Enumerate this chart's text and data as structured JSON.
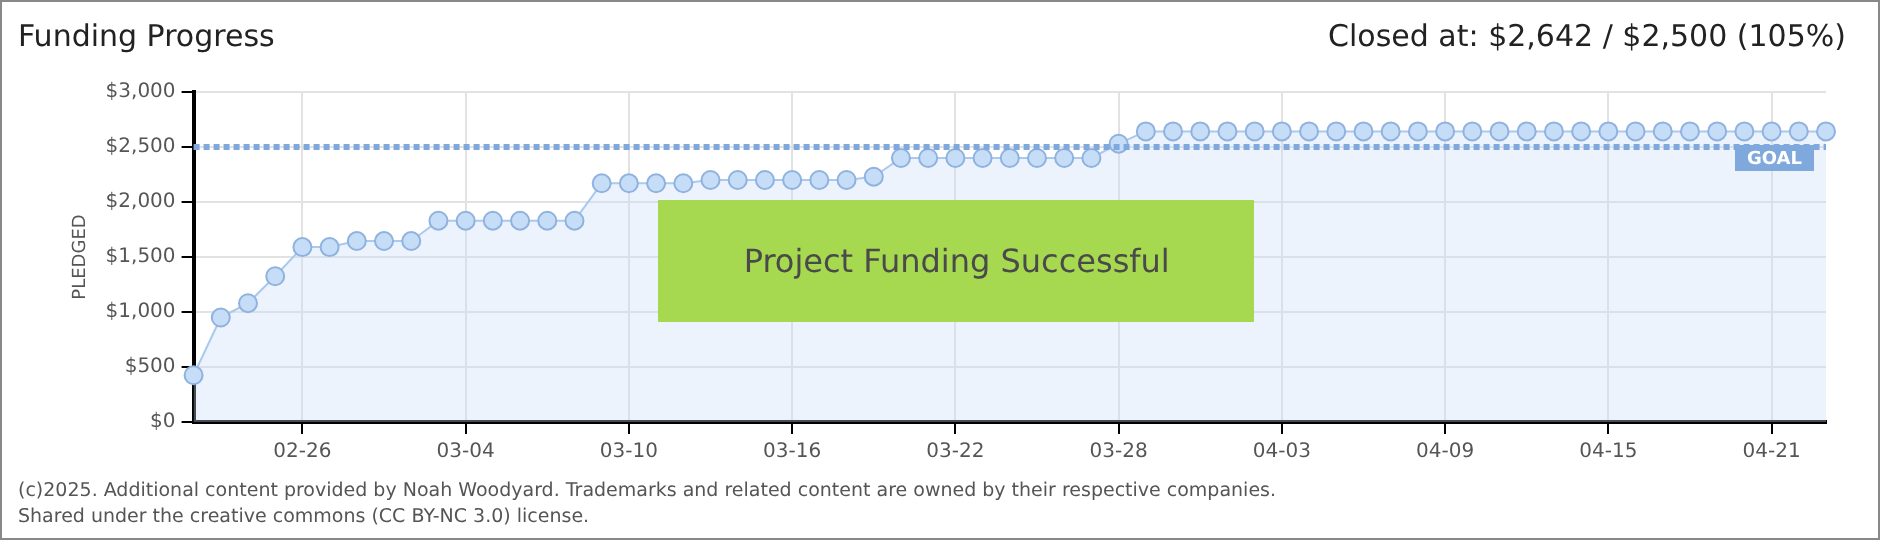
{
  "chart_data": {
    "type": "area",
    "title": "Funding Progress",
    "subtitle": "Closed at: $2,642 / $2,500 (105%)",
    "ylabel": "PLEDGED",
    "x": [
      "--02-22",
      "--02-23",
      "--02-24",
      "--02-25",
      "--02-26",
      "--02-27",
      "--02-28",
      "--03-01",
      "--03-02",
      "--03-03",
      "--03-04",
      "--03-05",
      "--03-06",
      "--03-07",
      "--03-08",
      "--03-09",
      "--03-10",
      "--03-11",
      "--03-12",
      "--03-13",
      "--03-14",
      "--03-15",
      "--03-16",
      "--03-17",
      "--03-18",
      "--03-19",
      "--03-20",
      "--03-21",
      "--03-22",
      "--03-23",
      "--03-24",
      "--03-25",
      "--03-26",
      "--03-27",
      "--03-28",
      "--03-29",
      "--03-30",
      "--03-31",
      "--04-01",
      "--04-02",
      "--04-03",
      "--04-04",
      "--04-05",
      "--04-06",
      "--04-07",
      "--04-08",
      "--04-09",
      "--04-10",
      "--04-11",
      "--04-12",
      "--04-13",
      "--04-14",
      "--04-15",
      "--04-16",
      "--04-17",
      "--04-18",
      "--04-19",
      "--04-20",
      "--04-21",
      "--04-22",
      "--04-23"
    ],
    "series": [
      {
        "color": "#a9c9ef",
        "values": [
          425,
          950,
          1080,
          1325,
          1590,
          1590,
          1645,
          1645,
          1645,
          1830,
          1830,
          1830,
          1830,
          1830,
          1830,
          2170,
          2170,
          2170,
          2170,
          2200,
          2200,
          2200,
          2200,
          2200,
          2200,
          2230,
          2400,
          2400,
          2400,
          2400,
          2400,
          2400,
          2400,
          2400,
          2530,
          2642,
          2642,
          2642,
          2642,
          2642,
          2642,
          2642,
          2642,
          2642,
          2642,
          2642,
          2642,
          2642,
          2642,
          2642,
          2642,
          2642,
          2642,
          2642,
          2642,
          2642,
          2642,
          2642,
          2642,
          2642,
          2642
        ]
      }
    ],
    "xlim": [
      "--02-22",
      "--04-23"
    ],
    "xticks": [
      {
        "value": "--02-26",
        "label": "02-26"
      },
      {
        "value": "--03-04",
        "label": "03-04"
      },
      {
        "value": "--03-10",
        "label": "03-10"
      },
      {
        "value": "--03-16",
        "label": "03-16"
      },
      {
        "value": "--03-22",
        "label": "03-22"
      },
      {
        "value": "--03-28",
        "label": "03-28"
      },
      {
        "value": "--04-03",
        "label": "04-03"
      },
      {
        "value": "--04-09",
        "label": "04-09"
      },
      {
        "value": "--04-15",
        "label": "04-15"
      },
      {
        "value": "--04-21",
        "label": "04-21"
      }
    ],
    "ylim": [
      0,
      3000
    ],
    "yticks": [
      {
        "value": 0,
        "label": "$0"
      },
      {
        "value": 500,
        "label": "$500"
      },
      {
        "value": 1000,
        "label": "$1,000"
      },
      {
        "value": 1500,
        "label": "$1,500"
      },
      {
        "value": 2000,
        "label": "$2,000"
      },
      {
        "value": 2500,
        "label": "$2,500"
      },
      {
        "value": 3000,
        "label": "$3,000"
      }
    ],
    "grid": true,
    "legend": false,
    "marker": "circle",
    "ref_lines": [
      {
        "axis": "y",
        "value": 2500,
        "label": "GOAL",
        "color": "#7fa8dc",
        "line_style": "dotted"
      }
    ],
    "annotations": [
      "Project Funding Successful",
      "(c)2025. Additional content provided by Noah Woodyard. Trademarks and related content are owned by their respective companies.",
      "Shared under the creative commons (CC BY-NC 3.0) license."
    ]
  }
}
